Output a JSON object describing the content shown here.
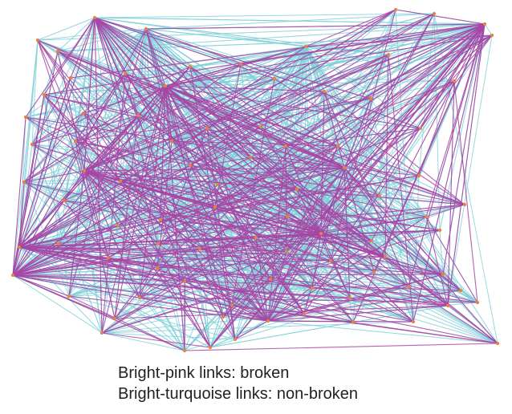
{
  "legend": {
    "broken_label": "Bright-pink links: broken",
    "non_broken_label": "Bright-turquoise links: non-broken"
  },
  "colors": {
    "broken": "#a845a5",
    "non_broken": "#7fcfd8",
    "node": "#e8823a"
  },
  "graph": {
    "node_count": 86,
    "hubs": [
      "top-left hub",
      "right hub",
      "left-bottom hub",
      "center-right hub",
      "bottom-center hub"
    ]
  }
}
